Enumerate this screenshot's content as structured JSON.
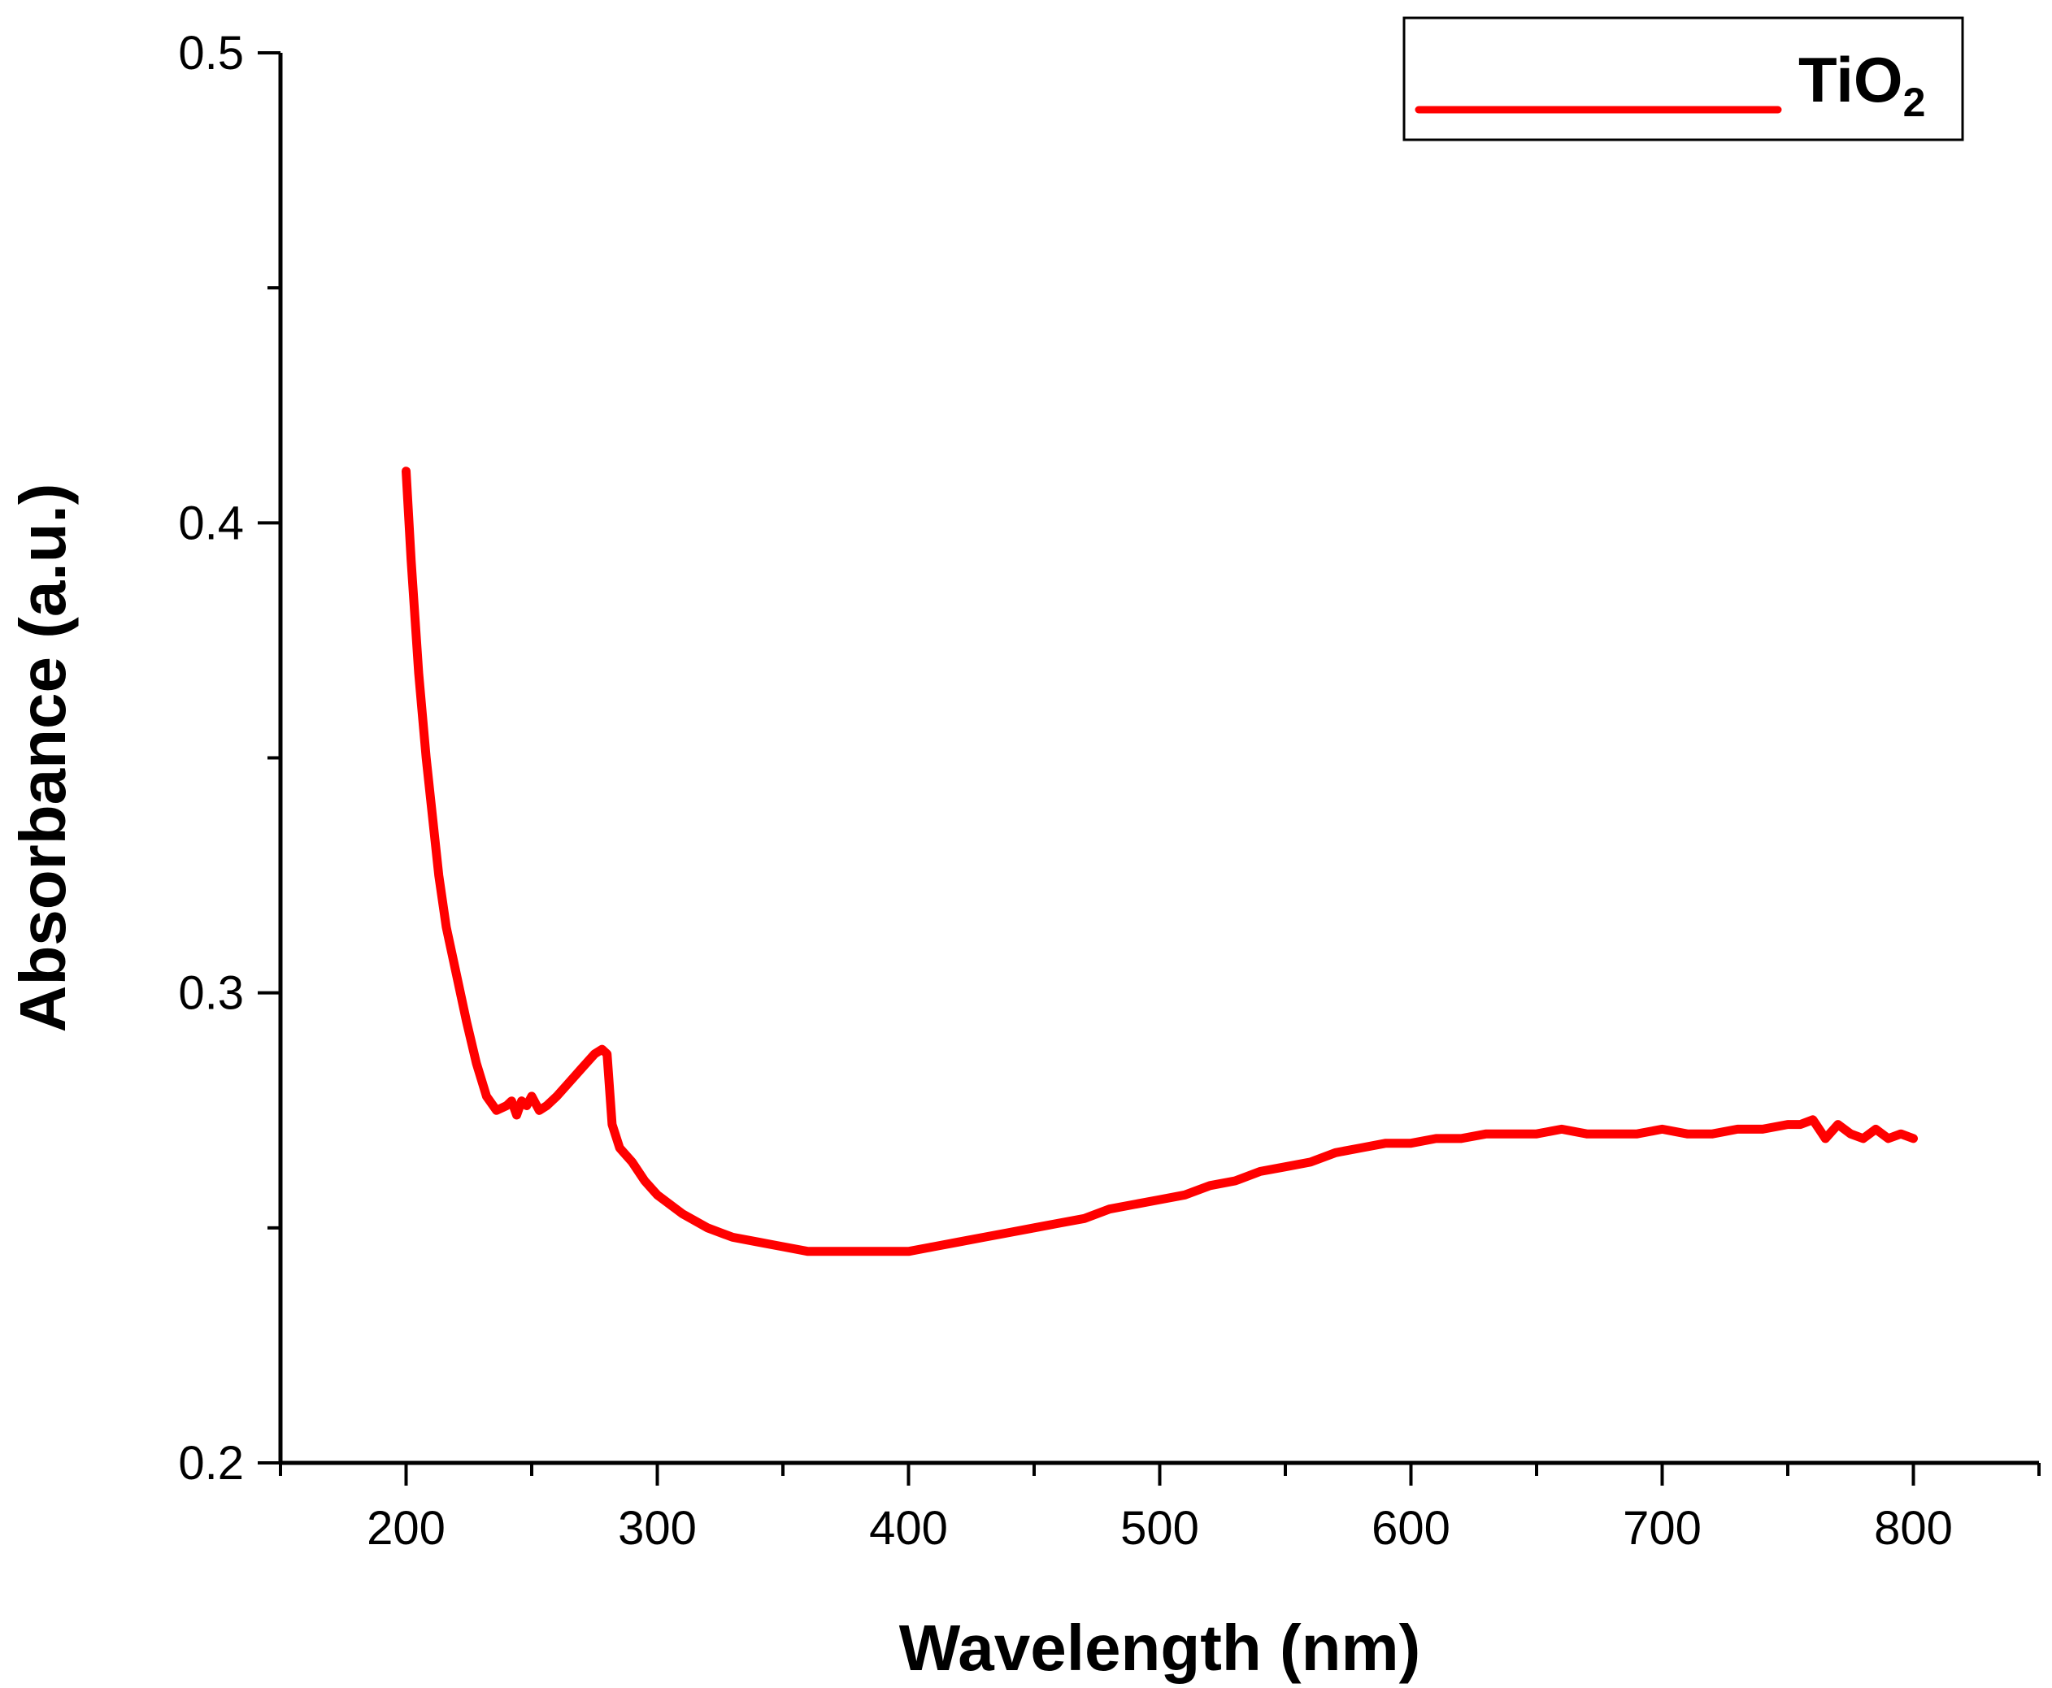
{
  "chart_data": {
    "type": "line",
    "title": "",
    "xlabel": "Wavelength (nm)",
    "ylabel": "Absorbance (a.u.)",
    "xlim": [
      150,
      850
    ],
    "ylim": [
      0.2,
      0.5
    ],
    "x_ticks": [
      200,
      300,
      400,
      500,
      600,
      700,
      800
    ],
    "x_tick_labels": [
      "200",
      "300",
      "400",
      "500",
      "600",
      "700",
      "800"
    ],
    "y_ticks": [
      0.2,
      0.3,
      0.4,
      0.5
    ],
    "y_tick_labels": [
      "0.2",
      "0.3",
      "0.4",
      "0.5"
    ],
    "y_minor_ticks": [
      0.25,
      0.35,
      0.45
    ],
    "grid": false,
    "legend_position": "top-right",
    "series": [
      {
        "name": "TiO",
        "name_subscript": "2",
        "color": "#ff0000",
        "x": [
          200,
          202,
          205,
          208,
          210,
          213,
          216,
          220,
          224,
          228,
          232,
          236,
          240,
          242,
          244,
          246,
          248,
          250,
          253,
          256,
          260,
          265,
          270,
          275,
          278,
          280,
          282,
          285,
          290,
          295,
          300,
          310,
          320,
          330,
          340,
          350,
          360,
          370,
          380,
          390,
          400,
          410,
          420,
          430,
          440,
          450,
          460,
          470,
          480,
          490,
          500,
          510,
          520,
          530,
          540,
          550,
          560,
          570,
          580,
          590,
          600,
          610,
          620,
          630,
          640,
          650,
          660,
          670,
          680,
          690,
          700,
          710,
          720,
          730,
          740,
          750,
          755,
          760,
          765,
          770,
          775,
          780,
          785,
          790,
          795,
          800
        ],
        "y": [
          0.411,
          0.392,
          0.368,
          0.35,
          0.34,
          0.325,
          0.314,
          0.304,
          0.294,
          0.285,
          0.278,
          0.275,
          0.276,
          0.277,
          0.274,
          0.277,
          0.276,
          0.278,
          0.275,
          0.276,
          0.278,
          0.281,
          0.284,
          0.287,
          0.288,
          0.287,
          0.272,
          0.267,
          0.264,
          0.26,
          0.257,
          0.253,
          0.25,
          0.248,
          0.247,
          0.246,
          0.245,
          0.245,
          0.245,
          0.245,
          0.245,
          0.246,
          0.247,
          0.248,
          0.249,
          0.25,
          0.251,
          0.252,
          0.254,
          0.255,
          0.256,
          0.257,
          0.259,
          0.26,
          0.262,
          0.263,
          0.264,
          0.266,
          0.267,
          0.268,
          0.268,
          0.269,
          0.269,
          0.27,
          0.27,
          0.27,
          0.271,
          0.27,
          0.27,
          0.27,
          0.271,
          0.27,
          0.27,
          0.271,
          0.271,
          0.272,
          0.272,
          0.273,
          0.269,
          0.272,
          0.27,
          0.269,
          0.271,
          0.269,
          0.27,
          0.269
        ]
      }
    ]
  }
}
